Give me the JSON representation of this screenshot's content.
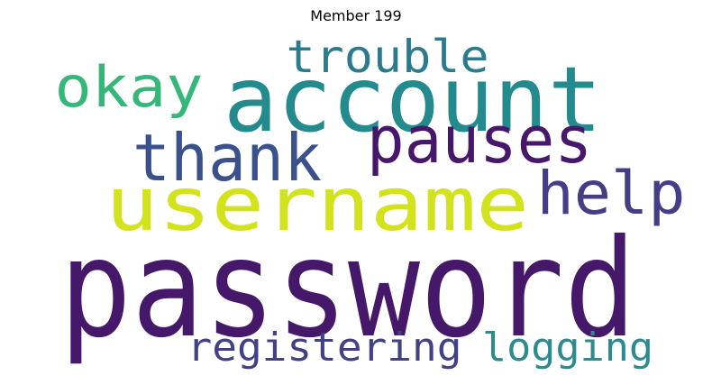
{
  "title": "Member 199",
  "words": [
    {
      "text": "password",
      "color": "#46186a"
    },
    {
      "text": "account",
      "color": "#238a8d"
    },
    {
      "text": "username",
      "color": "#d2e21b"
    },
    {
      "text": "thank",
      "color": "#3b518b"
    },
    {
      "text": "pauses",
      "color": "#47176c"
    },
    {
      "text": "help",
      "color": "#433e85"
    },
    {
      "text": "okay",
      "color": "#35b779"
    },
    {
      "text": "trouble",
      "color": "#2b7b8e"
    },
    {
      "text": "registering",
      "color": "#424186"
    },
    {
      "text": "logging",
      "color": "#2d8a8d"
    }
  ]
}
